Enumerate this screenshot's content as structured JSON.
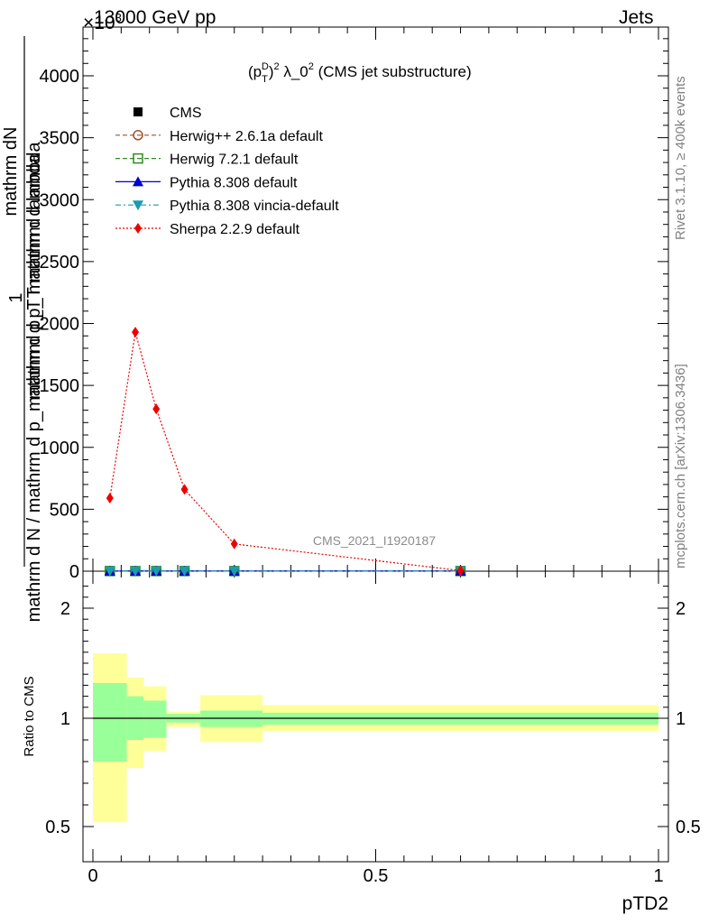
{
  "header": {
    "left": "13000 GeV pp",
    "right": "Jets",
    "exponent": "×10",
    "exponent_power": "3"
  },
  "side_labels": {
    "rivet": "Rivet 3.1.10, ≥ 400k events",
    "mcplots": "mcplots.cern.ch [arXiv:1306.3436]"
  },
  "chart_data": [
    {
      "type": "line",
      "title": "(pT D)2 λ_0 2 (CMS jet substructure)",
      "title_parts": {
        "p": "p",
        "sub": "T",
        "sup": "D",
        "sq": "2",
        "rest": " λ_0",
        "sq2": "2",
        "tail": " (CMS jet substructure)"
      },
      "ylabel_numerator": "mathrm dN",
      "ylabel_denominator": "mathrm d N / mathrm d p_mathrm d p_T mathrm d lambda",
      "ylabel_prefix": "1",
      "ylabel_raw": "mathrm d p_T mathrm d lambda",
      "watermark": "CMS_2021_I1920187",
      "xlim": [
        0,
        1
      ],
      "ylim": [
        0,
        4300
      ],
      "yticks": [
        0,
        500,
        1000,
        1500,
        2000,
        2500,
        3000,
        3500,
        4000
      ],
      "ytick_labels": [
        "0",
        "500",
        "1000",
        "1500",
        "2000",
        "2500",
        "3000",
        "3500",
        "4000"
      ],
      "x": [
        0.03,
        0.075,
        0.112,
        0.162,
        0.25,
        0.65
      ],
      "legend": [
        {
          "name": "CMS",
          "color": "#000000",
          "marker": "square-filled",
          "line": "none"
        },
        {
          "name": "Herwig++ 2.6.1a default",
          "color": "#a0522d",
          "marker": "circle-open",
          "line": "dashed"
        },
        {
          "name": "Herwig 7.2.1 default",
          "color": "#2e8b1e",
          "marker": "square-open",
          "line": "dashed"
        },
        {
          "name": "Pythia 8.308 default",
          "color": "#0000cc",
          "marker": "triangle-up",
          "line": "solid"
        },
        {
          "name": "Pythia 8.308 vincia-default",
          "color": "#1a9bb0",
          "marker": "triangle-down",
          "line": "dashdot"
        },
        {
          "name": "Sherpa 2.2.9 default",
          "color": "#ee0000",
          "marker": "diamond",
          "line": "dotted"
        }
      ],
      "series": [
        {
          "name": "CMS",
          "values": [
            1,
            1,
            1,
            1,
            1,
            1
          ]
        },
        {
          "name": "Herwig++ 2.6.1a default",
          "values": [
            1,
            1,
            1,
            1,
            1,
            1
          ]
        },
        {
          "name": "Herwig 7.2.1 default",
          "values": [
            1,
            1,
            1,
            1,
            1,
            1
          ]
        },
        {
          "name": "Pythia 8.308 default",
          "values": [
            1,
            1,
            1,
            1,
            1,
            1
          ]
        },
        {
          "name": "Pythia 8.308 vincia-default",
          "values": [
            1,
            1,
            1,
            1,
            1,
            1
          ]
        },
        {
          "name": "Sherpa 2.2.9 default",
          "values": [
            590,
            1930,
            1310,
            660,
            220,
            5
          ]
        }
      ]
    },
    {
      "type": "area",
      "ylabel": "Ratio to CMS",
      "xlabel": "pTD2",
      "xlim": [
        0,
        1
      ],
      "ylim": [
        0.4,
        2.3
      ],
      "xticks": [
        0,
        0.5,
        1
      ],
      "xtick_labels": [
        "0",
        "0.5",
        "1"
      ],
      "yticks": [
        0.5,
        1,
        2
      ],
      "ytick_labels": [
        "0.5",
        "1",
        "2"
      ],
      "reference": 1,
      "bins": [
        {
          "x0": 0.0,
          "x1": 0.06,
          "green": [
            0.8,
            1.32
          ],
          "yellow": [
            0.52,
            1.59
          ]
        },
        {
          "x0": 0.06,
          "x1": 0.09,
          "green": [
            0.9,
            1.2
          ],
          "yellow": [
            0.77,
            1.37
          ]
        },
        {
          "x0": 0.09,
          "x1": 0.13,
          "green": [
            0.91,
            1.16
          ],
          "yellow": [
            0.85,
            1.29
          ]
        },
        {
          "x0": 0.13,
          "x1": 0.19,
          "green": [
            0.98,
            1.04
          ],
          "yellow": [
            0.96,
            1.06
          ]
        },
        {
          "x0": 0.19,
          "x1": 0.3,
          "green": [
            0.96,
            1.07
          ],
          "yellow": [
            0.89,
            1.21
          ]
        },
        {
          "x0": 0.3,
          "x1": 1.0,
          "green": [
            0.97,
            1.05
          ],
          "yellow": [
            0.94,
            1.12
          ]
        }
      ]
    }
  ]
}
